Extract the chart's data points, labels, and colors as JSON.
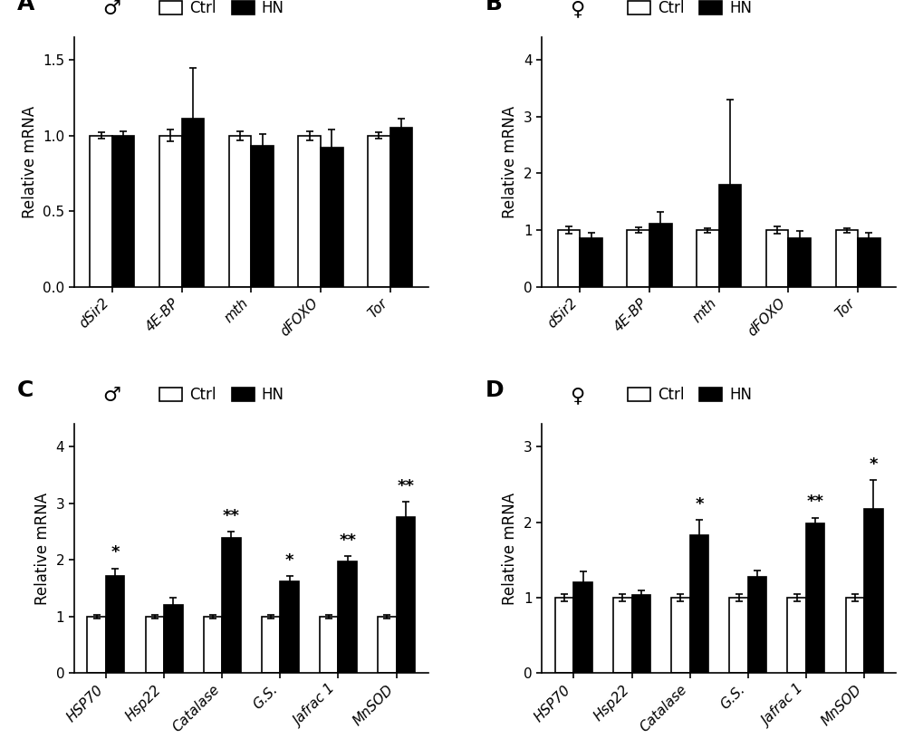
{
  "panel_A": {
    "label": "A",
    "sex_symbol": "♂",
    "categories": [
      "dSir2",
      "4E-BP",
      "mth",
      "dFOXO",
      "Tor"
    ],
    "ctrl_vals": [
      1.0,
      1.0,
      1.0,
      1.0,
      1.0
    ],
    "ctrl_err": [
      0.02,
      0.04,
      0.03,
      0.03,
      0.02
    ],
    "hn_vals": [
      1.0,
      1.11,
      0.93,
      0.92,
      1.05
    ],
    "hn_err": [
      0.03,
      0.34,
      0.08,
      0.12,
      0.06
    ],
    "ylim": [
      0,
      1.65
    ],
    "yticks": [
      0.0,
      0.5,
      1.0,
      1.5
    ],
    "yticklabels": [
      "0.0",
      "0.5",
      "1.0",
      "1.5"
    ],
    "significance": [
      "",
      "",
      "",
      "",
      ""
    ],
    "ylabel": "Relative mRNA"
  },
  "panel_B": {
    "label": "B",
    "sex_symbol": "♀",
    "categories": [
      "dSir2",
      "4E-BP",
      "mth",
      "dFOXO",
      "Tor"
    ],
    "ctrl_vals": [
      1.0,
      1.0,
      1.0,
      1.0,
      1.0
    ],
    "ctrl_err": [
      0.06,
      0.05,
      0.04,
      0.06,
      0.04
    ],
    "hn_vals": [
      0.85,
      1.12,
      1.8,
      0.86,
      0.86
    ],
    "hn_err": [
      0.1,
      0.2,
      1.5,
      0.12,
      0.1
    ],
    "ylim": [
      0,
      4.4
    ],
    "yticks": [
      0,
      1,
      2,
      3,
      4
    ],
    "yticklabels": [
      "0",
      "1",
      "2",
      "3",
      "4"
    ],
    "significance": [
      "",
      "",
      "",
      "",
      ""
    ],
    "ylabel": "Relative mRNA"
  },
  "panel_C": {
    "label": "C",
    "sex_symbol": "♂",
    "categories": [
      "HSP70",
      "Hsp22",
      "Catalase",
      "G.S.",
      "Jafrac 1",
      "MnSOD"
    ],
    "ctrl_vals": [
      1.0,
      1.0,
      1.0,
      1.0,
      1.0,
      1.0
    ],
    "ctrl_err": [
      0.03,
      0.03,
      0.03,
      0.03,
      0.03,
      0.03
    ],
    "hn_vals": [
      1.72,
      1.2,
      2.38,
      1.62,
      1.98,
      2.75
    ],
    "hn_err": [
      0.13,
      0.13,
      0.12,
      0.1,
      0.08,
      0.28
    ],
    "ylim": [
      0,
      4.4
    ],
    "yticks": [
      0,
      1,
      2,
      3,
      4
    ],
    "yticklabels": [
      "0",
      "1",
      "2",
      "3",
      "4"
    ],
    "significance": [
      "*",
      "",
      "**",
      "*",
      "**",
      "**"
    ],
    "ylabel": "Relative mRNA"
  },
  "panel_D": {
    "label": "D",
    "sex_symbol": "♀",
    "categories": [
      "HSP70",
      "Hsp22",
      "Catalase",
      "G.S.",
      "Jafrac 1",
      "MnSOD"
    ],
    "ctrl_vals": [
      1.0,
      1.0,
      1.0,
      1.0,
      1.0,
      1.0
    ],
    "ctrl_err": [
      0.05,
      0.05,
      0.05,
      0.05,
      0.05,
      0.05
    ],
    "hn_vals": [
      1.2,
      1.03,
      1.83,
      1.28,
      1.98,
      2.18
    ],
    "hn_err": [
      0.15,
      0.06,
      0.2,
      0.08,
      0.08,
      0.38
    ],
    "ylim": [
      0,
      3.3
    ],
    "yticks": [
      0,
      1,
      2,
      3
    ],
    "yticklabels": [
      "0",
      "1",
      "2",
      "3"
    ],
    "significance": [
      "",
      "",
      "*",
      "",
      "**",
      "*"
    ],
    "ylabel": "Relative mRNA"
  },
  "bar_width": 0.32,
  "ctrl_color": "white",
  "hn_color": "black",
  "edge_color": "black",
  "background_color": "white",
  "ylabel_fontsize": 12,
  "tick_fontsize": 11,
  "legend_fontsize": 12,
  "sig_fontsize": 13,
  "panel_label_fontsize": 18,
  "sex_symbol_fontsize": 16,
  "xticklabel_fontsize": 11
}
